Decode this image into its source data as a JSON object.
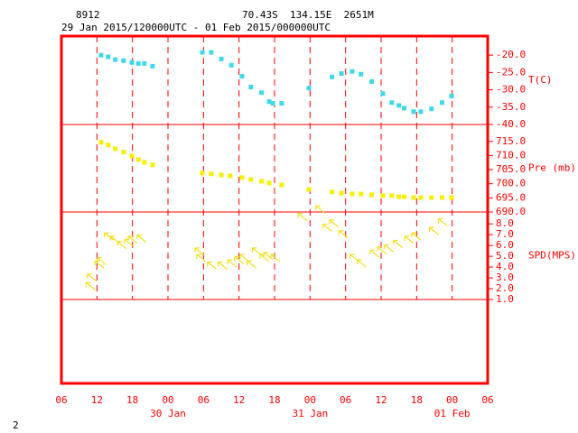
{
  "header": {
    "station": "8912",
    "location": "70.43S  134.15E  2651M",
    "period": "29 Jan 2015/120000UTC - 01 Feb 2015/000000UTC"
  },
  "page_number": "2",
  "chart_data": [
    {
      "type": "scatter",
      "ylabel": "T(C)",
      "color": "#3fd8e8",
      "xlim": [
        0,
        72
      ],
      "ylim": [
        -40,
        -14.5
      ],
      "yticks": [
        {
          "value": -20,
          "label": "-20.0"
        },
        {
          "value": -25,
          "label": "-25.0"
        },
        {
          "value": -30,
          "label": "-30.0"
        },
        {
          "value": -35,
          "label": "-35.0"
        },
        {
          "value": -40,
          "label": "-40.0"
        }
      ],
      "x": [
        6.7,
        7.9,
        9.1,
        10.5,
        11.9,
        13.0,
        14.0,
        15.4,
        23.8,
        25.3,
        27.0,
        28.7,
        30.5,
        32.0,
        33.8,
        35.1,
        35.7,
        37.2,
        41.8,
        45.7,
        47.3,
        49.1,
        50.6,
        52.4,
        54.3,
        55.8,
        57.0,
        57.9,
        59.5,
        60.7,
        62.5,
        64.3,
        65.9
      ],
      "values": [
        -20.0,
        -20.5,
        -21.3,
        -21.6,
        -22.1,
        -22.4,
        -22.4,
        -23.2,
        -19.2,
        -19.2,
        -21.1,
        -22.9,
        -26.1,
        -29.2,
        -30.8,
        -33.4,
        -33.9,
        -33.9,
        -29.5,
        -26.3,
        -25.3,
        -24.7,
        -25.5,
        -27.6,
        -31.1,
        -33.7,
        -34.5,
        -35.3,
        -36.3,
        -36.3,
        -35.5,
        -33.7,
        -31.8
      ]
    },
    {
      "type": "scatter",
      "ylabel": "Pre (mb)",
      "color": "#f5f000",
      "xlim": [
        0,
        72
      ],
      "ylim": [
        690,
        721
      ],
      "yticks": [
        {
          "value": 715,
          "label": "715.0"
        },
        {
          "value": 710,
          "label": "710.0"
        },
        {
          "value": 705,
          "label": "705.0"
        },
        {
          "value": 700,
          "label": "700.0"
        },
        {
          "value": 695,
          "label": "695.0"
        },
        {
          "value": 690,
          "label": "690.0"
        }
      ],
      "x": [
        6.7,
        7.9,
        9.1,
        10.5,
        11.9,
        13.0,
        14.0,
        15.4,
        23.8,
        25.3,
        27.0,
        28.5,
        30.5,
        32.0,
        33.8,
        35.1,
        37.2,
        41.8,
        45.7,
        47.3,
        49.1,
        50.6,
        52.4,
        54.3,
        55.8,
        57.0,
        57.9,
        59.5,
        60.7,
        62.5,
        64.3,
        65.9
      ],
      "values": [
        714.7,
        713.7,
        712.4,
        711.2,
        709.9,
        708.6,
        707.6,
        706.7,
        703.8,
        703.5,
        703.1,
        702.8,
        702.2,
        701.5,
        700.9,
        700.3,
        699.6,
        698.0,
        697.1,
        696.7,
        696.4,
        696.4,
        696.1,
        695.8,
        695.8,
        695.4,
        695.4,
        695.1,
        695.1,
        695.1,
        695.1,
        695.1
      ]
    },
    {
      "type": "quiver",
      "ylabel": "SPD(MPS)",
      "color": "#f0e020",
      "xlim": [
        0,
        72
      ],
      "ylim": [
        1,
        9.1
      ],
      "yticks": [
        {
          "value": 8,
          "label": "8.0"
        },
        {
          "value": 7,
          "label": "7.0"
        },
        {
          "value": 6,
          "label": "6.0"
        },
        {
          "value": 5,
          "label": "5.0"
        },
        {
          "value": 4,
          "label": "4.0"
        },
        {
          "value": 3,
          "label": "3.0"
        },
        {
          "value": 2,
          "label": "2.0"
        },
        {
          "value": 1,
          "label": "1.0"
        }
      ],
      "xticks": [
        {
          "value": 0,
          "label": "06"
        },
        {
          "value": 6,
          "label": "12"
        },
        {
          "value": 12,
          "label": "18"
        },
        {
          "value": 18,
          "label": "00"
        },
        {
          "value": 24,
          "label": "06"
        },
        {
          "value": 30,
          "label": "12"
        },
        {
          "value": 36,
          "label": "18"
        },
        {
          "value": 42,
          "label": "00"
        },
        {
          "value": 48,
          "label": "06"
        },
        {
          "value": 54,
          "label": "12"
        },
        {
          "value": 60,
          "label": "18"
        },
        {
          "value": 66,
          "label": "00"
        },
        {
          "value": 72,
          "label": "06"
        }
      ],
      "date_labels": [
        {
          "value": 18,
          "label": "30 Jan"
        },
        {
          "value": 42,
          "label": "31 Jan"
        },
        {
          "value": 66,
          "label": "01 Feb"
        }
      ],
      "x": [
        5.7,
        5.9,
        7.2,
        7.6,
        8.8,
        9.8,
        11.0,
        12.2,
        12.8,
        14.3,
        24.1,
        24.4,
        26.2,
        28.0,
        29.6,
        30.8,
        31.7,
        32.9,
        33.8,
        35.1,
        35.7,
        36.9,
        41.5,
        44.5,
        45.7,
        46.8,
        48.4,
        50.3,
        51.5,
        53.7,
        54.9,
        56.1,
        57.6,
        59.5,
        60.7,
        63.7,
        65.2
      ],
      "values": [
        1.9,
        2.7,
        3.9,
        4.2,
        6.5,
        6.2,
        5.7,
        5.9,
        6.2,
        6.3,
        5.1,
        4.5,
        3.8,
        3.8,
        4.0,
        4.3,
        4.5,
        3.9,
        5.1,
        4.5,
        4.7,
        4.5,
        8.3,
        9.0,
        7.3,
        7.7,
        6.7,
        4.5,
        4.0,
        4.9,
        5.2,
        5.4,
        5.8,
        6.2,
        6.5,
        7.0,
        7.8
      ]
    }
  ]
}
